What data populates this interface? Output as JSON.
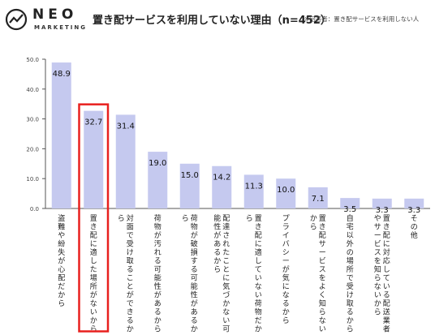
{
  "logo": {
    "word": "NEO",
    "sub": "MARKETING"
  },
  "title": "置き配サービスを利用していない理由（n=452）",
  "note": "※回答者：置き配サービスを利用しない人",
  "colors": {
    "bar": "#c5c9ef",
    "highlight": "#e8201e",
    "axis": "#555555"
  },
  "chart_data": {
    "type": "bar",
    "categories": [
      "盗難や紛失が心配だから",
      "置き配に適した場所がないから",
      "対面で受け取ることができるから",
      "荷物が汚れる可能性があるから",
      "荷物が破損する可能性があるから",
      "配達されたことに気づかない可能性があるから",
      "置き配に適していない荷物だから",
      "プライバシーが気になるから",
      "置き配サービスをよく知らないから",
      "自宅以外の場所で受け取るから",
      "置き配に対応している配送業者やサービスを知らないから",
      "その他"
    ],
    "values": [
      48.9,
      32.7,
      31.4,
      19.0,
      15.0,
      14.2,
      11.3,
      10.0,
      7.1,
      3.5,
      3.3,
      3.3
    ],
    "value_labels": [
      "48.9",
      "32.7",
      "31.4",
      "19.0",
      "15.0",
      "14.2",
      "11.3",
      "10.0",
      "7.1",
      "3.5",
      "3.3",
      "3.3"
    ],
    "yticks": [
      "0.0",
      "10.0",
      "20.0",
      "30.0",
      "40.0",
      "50.0"
    ],
    "ylim": [
      0,
      50
    ],
    "highlight_index": 1,
    "grid": false
  }
}
